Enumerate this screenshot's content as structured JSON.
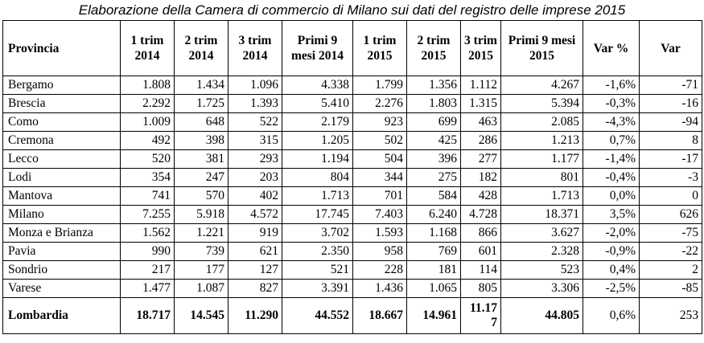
{
  "caption": "Elaborazione della Camera di commercio di Milano sui dati del registro delle imprese 2015",
  "table": {
    "headers": [
      "Provincia",
      "1 trim 2014",
      "2 trim 2014",
      "3 trim 2014",
      "Primi 9 mesi 2014",
      "1 trim 2015",
      "2 trim 2015",
      "3 trim 2015",
      "Primi 9 mesi 2015",
      "Var %",
      "Var"
    ],
    "rows": [
      [
        "Bergamo",
        "1.808",
        "1.434",
        "1.096",
        "4.338",
        "1.799",
        "1.356",
        "1.112",
        "4.267",
        "-1,6%",
        "-71"
      ],
      [
        "Brescia",
        "2.292",
        "1.725",
        "1.393",
        "5.410",
        "2.276",
        "1.803",
        "1.315",
        "5.394",
        "-0,3%",
        "-16"
      ],
      [
        "Como",
        "1.009",
        "648",
        "522",
        "2.179",
        "923",
        "699",
        "463",
        "2.085",
        "-4,3%",
        "-94"
      ],
      [
        "Cremona",
        "492",
        "398",
        "315",
        "1.205",
        "502",
        "425",
        "286",
        "1.213",
        "0,7%",
        "8"
      ],
      [
        "Lecco",
        "520",
        "381",
        "293",
        "1.194",
        "504",
        "396",
        "277",
        "1.177",
        "-1,4%",
        "-17"
      ],
      [
        "Lodi",
        "354",
        "247",
        "203",
        "804",
        "344",
        "275",
        "182",
        "801",
        "-0,4%",
        "-3"
      ],
      [
        "Mantova",
        "741",
        "570",
        "402",
        "1.713",
        "701",
        "584",
        "428",
        "1.713",
        "0,0%",
        "0"
      ],
      [
        "Milano",
        "7.255",
        "5.918",
        "4.572",
        "17.745",
        "7.403",
        "6.240",
        "4.728",
        "18.371",
        "3,5%",
        "626"
      ],
      [
        "Monza e Brianza",
        "1.562",
        "1.221",
        "919",
        "3.702",
        "1.593",
        "1.168",
        "866",
        "3.627",
        "-2,0%",
        "-75"
      ],
      [
        "Pavia",
        "990",
        "739",
        "621",
        "2.350",
        "958",
        "769",
        "601",
        "2.328",
        "-0,9%",
        "-22"
      ],
      [
        "Sondrio",
        "217",
        "177",
        "127",
        "521",
        "228",
        "181",
        "114",
        "523",
        "0,4%",
        "2"
      ],
      [
        "Varese",
        "1.477",
        "1.087",
        "827",
        "3.391",
        "1.436",
        "1.065",
        "805",
        "3.306",
        "-2,5%",
        "-85"
      ]
    ],
    "total": [
      "Lombardia",
      "18.717",
      "14.545",
      "11.290",
      "44.552",
      "18.667",
      "14.961",
      "11.177",
      "44.805",
      "0,6%",
      "253"
    ]
  }
}
